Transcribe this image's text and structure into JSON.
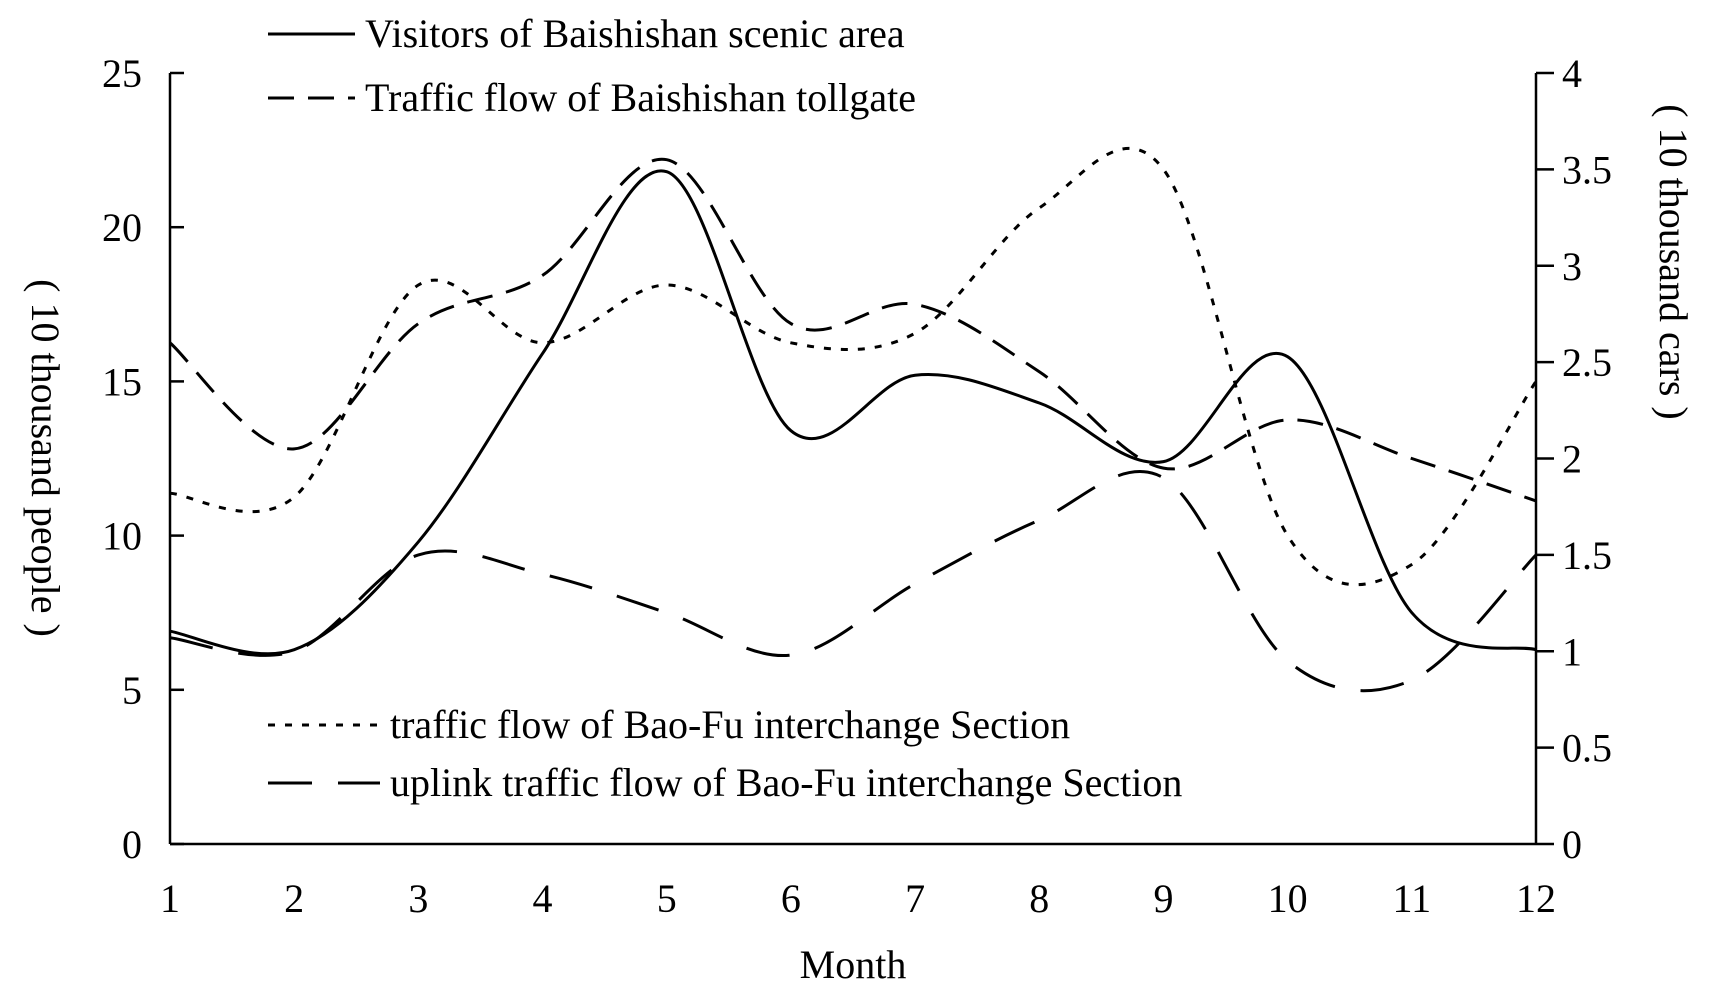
{
  "chart_data": {
    "type": "line",
    "xlabel": "Month",
    "ylabel_left": "( 10 thousand people )",
    "ylabel_right": "( 10 thousand cars )",
    "x": [
      1,
      2,
      3,
      4,
      5,
      6,
      7,
      8,
      9,
      10,
      11,
      12
    ],
    "x_tick_labels": [
      "1",
      "2",
      "3",
      "4",
      "5",
      "6",
      "7",
      "8",
      "9",
      "10",
      "11",
      "12"
    ],
    "y_left_range": [
      0,
      25
    ],
    "y_left_ticks": [
      "0",
      "5",
      "10",
      "15",
      "20",
      "25"
    ],
    "y_right_range": [
      0,
      4
    ],
    "y_right_ticks": [
      "0",
      "0.5",
      "1",
      "1.5",
      "2",
      "2.5",
      "3",
      "3.5",
      "4"
    ],
    "grid": false,
    "series": [
      {
        "name": "Visitors of Baishishan scenic area",
        "axis": "left",
        "style": "solid",
        "values": [
          6.9,
          6.3,
          9.8,
          15.9,
          21.8,
          13.4,
          15.2,
          14.3,
          12.4,
          15.8,
          7.5,
          6.3
        ]
      },
      {
        "name": "Traffic flow of Baishishan tollgate",
        "axis": "right",
        "style": "dashed",
        "values": [
          2.6,
          2.05,
          2.7,
          2.95,
          3.55,
          2.7,
          2.8,
          2.45,
          1.95,
          2.2,
          2.0,
          1.78
        ]
      },
      {
        "name": "traffic flow of Bao-Fu interchange Section",
        "axis": "right",
        "style": "dotted",
        "values": [
          1.82,
          1.8,
          2.9,
          2.6,
          2.9,
          2.6,
          2.65,
          3.3,
          3.5,
          1.6,
          1.45,
          2.4
        ]
      },
      {
        "name": "uplink traffic flow of Bao-Fu interchange Section",
        "axis": "right",
        "style": "longdash",
        "values": [
          1.07,
          1.0,
          1.5,
          1.4,
          1.2,
          0.98,
          1.35,
          1.68,
          1.9,
          0.95,
          0.85,
          1.5
        ]
      }
    ],
    "legend": [
      {
        "label": "Visitors of Baishishan scenic area",
        "style": "solid"
      },
      {
        "label": "Traffic flow of Baishishan tollgate",
        "style": "dashed"
      },
      {
        "label": "traffic flow of Bao-Fu interchange Section",
        "style": "dotted"
      },
      {
        "label": "uplink traffic flow of Bao-Fu interchange Section",
        "style": "longdash"
      }
    ]
  }
}
